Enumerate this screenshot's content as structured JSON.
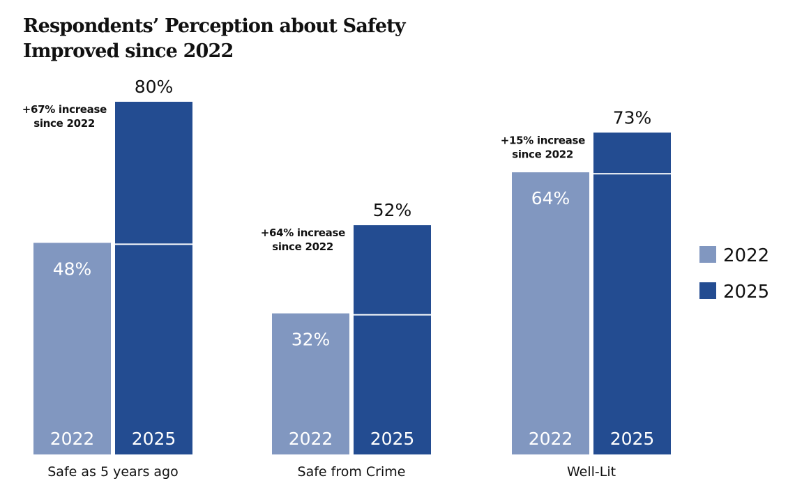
{
  "chart_data": {
    "type": "bar",
    "title": [
      "Respondents’ Perception about Safety",
      "Improved since 2022"
    ],
    "categories": [
      "Safe as 5 years ago",
      "Safe from Crime",
      "Well-Lit"
    ],
    "series": [
      {
        "name": "2022",
        "values": [
          48,
          32,
          64
        ],
        "labels": [
          "48%",
          "32%",
          "64%"
        ],
        "color": "#8197C0"
      },
      {
        "name": "2025",
        "values": [
          80,
          52,
          73
        ],
        "labels": [
          "80%",
          "52%",
          "73%"
        ],
        "color": "#234C91"
      }
    ],
    "bar_year_labels": [
      "2022",
      "2025"
    ],
    "annotations": [
      [
        "+67% increase",
        "since 2022"
      ],
      [
        "+64% increase",
        "since 2022"
      ],
      [
        "+15% increase",
        "since 2022"
      ]
    ],
    "legend": {
      "position": "right",
      "items": [
        "2022",
        "2025"
      ]
    },
    "ylim": [
      0,
      80
    ],
    "grid": false,
    "xlabel": "",
    "ylabel": ""
  }
}
